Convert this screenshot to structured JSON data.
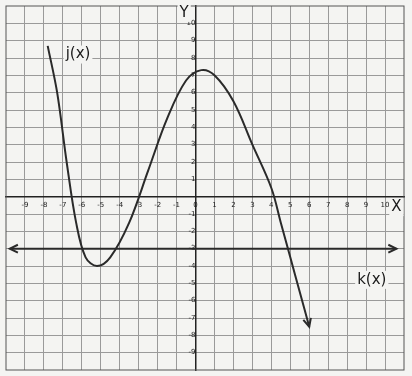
{
  "chart_data": {
    "type": "line",
    "series": [
      {
        "name": "j(x)",
        "color": "#2a2a2a",
        "line_style": "solid",
        "x": [
          -7.8,
          -7.3,
          -6.8,
          -6.3,
          -5.8,
          -5.2,
          -4.5,
          -3.5,
          -2.5,
          -1.5,
          -0.5,
          0.3,
          1,
          2,
          3,
          4,
          4.5,
          5,
          5.5,
          6
        ],
        "values": [
          8.7,
          6,
          2,
          -1.5,
          -3.5,
          -4,
          -3.5,
          -1.5,
          1.5,
          4.5,
          6.7,
          7.3,
          7,
          5.5,
          3,
          0.5,
          -1.5,
          -3.5,
          -5.5,
          -7.5
        ]
      },
      {
        "name": "k(x)",
        "color": "#2a2a2a",
        "line_style": "solid",
        "x": [
          -9.8,
          10.6
        ],
        "values": [
          -3,
          -3
        ]
      }
    ],
    "annotations": [
      {
        "text": "j(x)",
        "x": -6.2,
        "y": 8.2
      },
      {
        "text": "k(x)",
        "x": 9.3,
        "y": -4.8
      },
      {
        "text": "X",
        "x": 10.6,
        "y": -0.6
      },
      {
        "text": "Y",
        "x": -0.6,
        "y": 10.6
      }
    ],
    "xlim": [
      -10,
      11
    ],
    "ylim": [
      -10,
      11
    ],
    "xticks": [
      -9,
      -8,
      -7,
      -6,
      -5,
      -4,
      -3,
      -2,
      -1,
      0,
      1,
      2,
      3,
      4,
      5,
      6,
      7,
      8,
      9,
      10
    ],
    "yticks": [
      -9,
      -8,
      -7,
      -6,
      -5,
      -4,
      -3,
      -2,
      -1,
      1,
      2,
      3,
      4,
      5,
      6,
      7,
      8,
      9,
      10
    ],
    "grid": true
  }
}
